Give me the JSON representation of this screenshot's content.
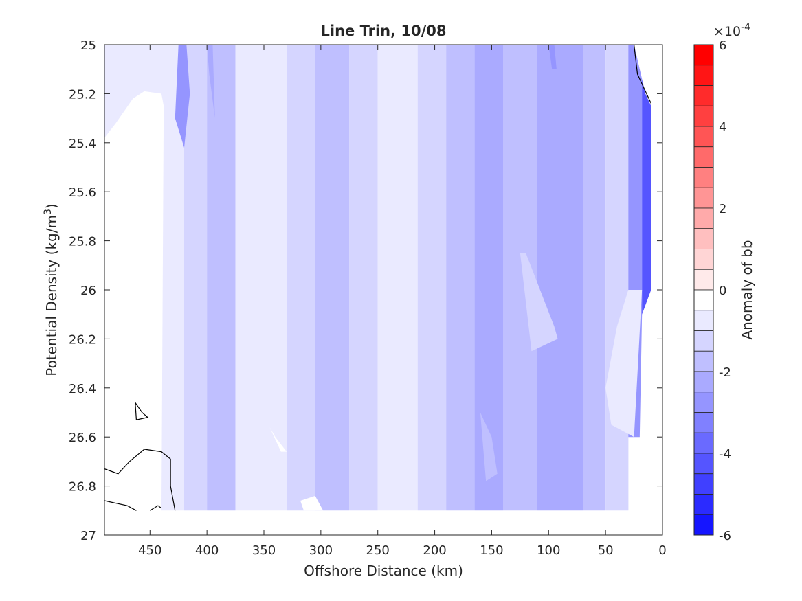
{
  "chart_data": {
    "type": "heatmap",
    "title": "Line Trin, 10/08",
    "xlabel": "Offshore Distance (km)",
    "ylabel_main": "Potential Density (kg/m",
    "ylabel_sup": "3",
    "ylabel_close": ")",
    "xlim": [
      490,
      0
    ],
    "ylim": [
      25,
      27
    ],
    "x_reversed": true,
    "y_reversed": true,
    "xticks": [
      450,
      400,
      350,
      300,
      250,
      200,
      150,
      100,
      50,
      0
    ],
    "xtick_labels": [
      "450",
      "400",
      "350",
      "300",
      "250",
      "200",
      "150",
      "100",
      "50",
      "0"
    ],
    "yticks": [
      25,
      25.2,
      25.4,
      25.6,
      25.8,
      26,
      26.2,
      26.4,
      26.6,
      26.8,
      27
    ],
    "ytick_labels": [
      "25",
      "25.2",
      "25.4",
      "25.6",
      "25.8",
      "26",
      "26.2",
      "26.4",
      "26.6",
      "26.8",
      "27"
    ],
    "grid": false,
    "colorbar": {
      "label": "Anomaly of bb",
      "exponent_prefix": "×10",
      "exponent_power": "-4",
      "range": [
        -6,
        6
      ],
      "ticks": [
        6,
        4,
        2,
        0,
        -2,
        -4,
        -6
      ],
      "tick_labels": [
        "6",
        "4",
        "2",
        "0",
        "-2",
        "-4",
        "-6"
      ],
      "levels": 24,
      "colors_top_to_bottom": [
        "#ff0000",
        "#ff1515",
        "#ff2b2b",
        "#ff4040",
        "#ff5555",
        "#ff6a6a",
        "#ff8080",
        "#ff9595",
        "#ffaaaa",
        "#ffbfbf",
        "#ffd5d5",
        "#ffeaea",
        "#ffffff",
        "#eaeaff",
        "#d5d5ff",
        "#bfbfff",
        "#aaaaff",
        "#9595ff",
        "#8080ff",
        "#6a6aff",
        "#5555ff",
        "#4040ff",
        "#2b2bff",
        "#1515ff"
      ]
    },
    "bands": [
      {
        "x_from": 490,
        "x_to": 438,
        "value": -0.5
      },
      {
        "x_from": 438,
        "x_to": 420,
        "value": -0.8
      },
      {
        "x_from": 420,
        "x_to": 400,
        "value": -1.2
      },
      {
        "x_from": 400,
        "x_to": 375,
        "value": -1.6
      },
      {
        "x_from": 375,
        "x_to": 330,
        "value": -0.8
      },
      {
        "x_from": 330,
        "x_to": 305,
        "value": -1.2
      },
      {
        "x_from": 305,
        "x_to": 275,
        "value": -1.6
      },
      {
        "x_from": 275,
        "x_to": 250,
        "value": -1.2
      },
      {
        "x_from": 250,
        "x_to": 215,
        "value": -0.8
      },
      {
        "x_from": 215,
        "x_to": 190,
        "value": -1.2
      },
      {
        "x_from": 190,
        "x_to": 165,
        "value": -1.6
      },
      {
        "x_from": 165,
        "x_to": 140,
        "value": -2.2
      },
      {
        "x_from": 140,
        "x_to": 110,
        "value": -1.6
      },
      {
        "x_from": 110,
        "x_to": 70,
        "value": -2.2
      },
      {
        "x_from": 70,
        "x_to": 50,
        "value": -1.6
      },
      {
        "x_from": 50,
        "x_to": 30,
        "value": -1.2
      },
      {
        "x_from": 30,
        "x_to": 18,
        "value": -2.8
      },
      {
        "x_from": 18,
        "x_to": 10,
        "value": -4.2
      }
    ],
    "patches": [
      {
        "x": [
          490,
          480,
          465,
          455,
          440,
          438,
          440,
          490
        ],
        "y": [
          25.38,
          25.32,
          25.22,
          25.19,
          25.2,
          25.25,
          26.95,
          26.95
        ],
        "value": 0
      },
      {
        "x": [
          425,
          418,
          415,
          420,
          428
        ],
        "y": [
          25.0,
          25.0,
          25.2,
          25.42,
          25.3
        ],
        "value": -2.8
      },
      {
        "x": [
          400,
          395,
          393,
          398
        ],
        "y": [
          25.0,
          25.0,
          25.3,
          25.12
        ],
        "value": -2.2
      },
      {
        "x": [
          100,
          95,
          93,
          97
        ],
        "y": [
          25.0,
          25.0,
          25.1,
          25.1
        ],
        "value": -2.8
      },
      {
        "x": [
          125,
          120,
          95,
          92,
          115
        ],
        "y": [
          25.85,
          25.85,
          26.15,
          26.2,
          26.25
        ],
        "value": -1.2
      },
      {
        "x": [
          160,
          150,
          145,
          155
        ],
        "y": [
          26.5,
          26.6,
          26.75,
          26.78
        ],
        "value": -1.6
      },
      {
        "x": [
          30,
          18,
          25,
          45,
          50,
          40
        ],
        "y": [
          26.0,
          26.0,
          26.6,
          26.55,
          26.4,
          26.15
        ],
        "value": -0.8
      },
      {
        "x": [
          30,
          20,
          18,
          10,
          10,
          0,
          0,
          30
        ],
        "y": [
          26.6,
          26.6,
          26.1,
          26.0,
          25.25,
          25.25,
          26.95,
          26.95
        ],
        "value": 0
      },
      {
        "x": [
          28,
          25,
          20,
          15,
          10,
          10,
          22,
          28
        ],
        "y": [
          25.0,
          25.0,
          25.1,
          25.2,
          25.25,
          25.0,
          25.0,
          25.0
        ],
        "value": 0
      },
      {
        "x": [
          490,
          490,
          250,
          0,
          0
        ],
        "y": [
          26.9,
          27.0,
          27.0,
          27.0,
          26.9
        ],
        "value": 0
      },
      {
        "x": [
          345,
          340,
          330,
          335
        ],
        "y": [
          26.56,
          26.6,
          26.66,
          26.66
        ],
        "value": 0
      },
      {
        "x": [
          318,
          305,
          298,
          315
        ],
        "y": [
          26.86,
          26.84,
          26.9,
          26.9
        ],
        "value": 0
      }
    ],
    "contours": [
      {
        "x": [
          490,
          478,
          468,
          455,
          440,
          432,
          432,
          428
        ],
        "y": [
          26.73,
          26.75,
          26.7,
          26.65,
          26.66,
          26.69,
          26.8,
          26.9
        ]
      },
      {
        "x": [
          490,
          470,
          462
        ],
        "y": [
          26.86,
          26.88,
          26.9
        ]
      },
      {
        "x": [
          450,
          443,
          440
        ],
        "y": [
          26.9,
          26.88,
          26.89
        ]
      },
      {
        "x": [
          463,
          457,
          452,
          462,
          463
        ],
        "y": [
          26.46,
          26.5,
          26.52,
          26.53,
          26.46
        ]
      },
      {
        "x": [
          25,
          22,
          16,
          10
        ],
        "y": [
          25.0,
          25.12,
          25.18,
          25.24
        ]
      }
    ]
  }
}
